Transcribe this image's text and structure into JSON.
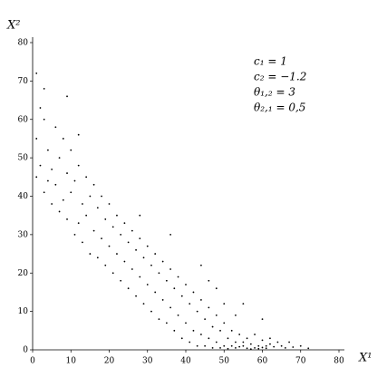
{
  "chart_data": {
    "type": "scatter",
    "x_label": "X¹",
    "y_label": "X²",
    "annotations": [
      "c₁ = 1",
      "c₂ = −1.2",
      "θ₁,₂ = 3",
      "θ₂,₁ = 0,5"
    ],
    "color": "#000000",
    "xlim": [
      0,
      80
    ],
    "ylim": [
      0,
      80
    ],
    "xticks": [
      0,
      10,
      20,
      30,
      40,
      50,
      60,
      70,
      80
    ],
    "yticks": [
      0,
      10,
      20,
      30,
      40,
      50,
      60,
      70,
      80
    ],
    "grid": false,
    "x": [
      1,
      2,
      3,
      1,
      4,
      2,
      5,
      3,
      6,
      4,
      7,
      5,
      8,
      6,
      9,
      8,
      10,
      7,
      11,
      9,
      12,
      10,
      13,
      12,
      14,
      11,
      15,
      14,
      16,
      13,
      17,
      16,
      18,
      15,
      19,
      18,
      20,
      17,
      21,
      20,
      22,
      19,
      23,
      22,
      24,
      21,
      25,
      24,
      26,
      23,
      27,
      26,
      28,
      25,
      29,
      28,
      30,
      27,
      31,
      30,
      32,
      29,
      33,
      32,
      34,
      31,
      35,
      34,
      36,
      33,
      37,
      36,
      38,
      35,
      39,
      38,
      40,
      37,
      41,
      40,
      42,
      39,
      43,
      42,
      44,
      41,
      45,
      44,
      46,
      43,
      47,
      46,
      48,
      45,
      49,
      48,
      50,
      47,
      51,
      50,
      52,
      49,
      53,
      52,
      54,
      51,
      55,
      54,
      56,
      53,
      57,
      56,
      58,
      55,
      59,
      58,
      60,
      57,
      61,
      60,
      62,
      59,
      63,
      62,
      64,
      61,
      65,
      66,
      67,
      68,
      70,
      72,
      3,
      9,
      1,
      28,
      44,
      55,
      60,
      12,
      36,
      48,
      50,
      53,
      46
    ],
    "values": [
      55,
      48,
      60,
      45,
      52,
      63,
      47,
      41,
      58,
      44,
      50,
      38,
      55,
      43,
      46,
      39,
      52,
      36,
      44,
      34,
      48,
      41,
      38,
      33,
      45,
      30,
      40,
      35,
      43,
      28,
      37,
      31,
      40,
      25,
      34,
      29,
      38,
      24,
      32,
      27,
      35,
      22,
      30,
      25,
      33,
      20,
      28,
      23,
      31,
      18,
      26,
      21,
      29,
      16,
      24,
      19,
      27,
      14,
      22,
      17,
      25,
      12,
      20,
      15,
      23,
      10,
      18,
      13,
      21,
      8,
      16,
      11,
      19,
      7,
      14,
      9,
      17,
      5,
      12,
      7,
      15,
      3,
      10,
      5,
      13,
      2,
      8,
      4,
      11,
      1,
      6,
      3,
      9,
      1,
      5,
      2,
      7,
      0.5,
      3,
      1,
      5,
      0.5,
      2,
      1,
      4,
      0.3,
      2,
      0.8,
      3,
      0.5,
      1.5,
      0.4,
      4,
      1,
      1,
      0.5,
      2.5,
      0.2,
      1,
      0.6,
      3,
      0.3,
      0.8,
      1.5,
      2,
      0.4,
      1,
      0.5,
      2,
      0.7,
      1,
      0.4,
      68,
      66,
      72,
      35,
      22,
      12,
      8,
      56,
      30,
      16,
      12,
      9,
      18
    ]
  }
}
